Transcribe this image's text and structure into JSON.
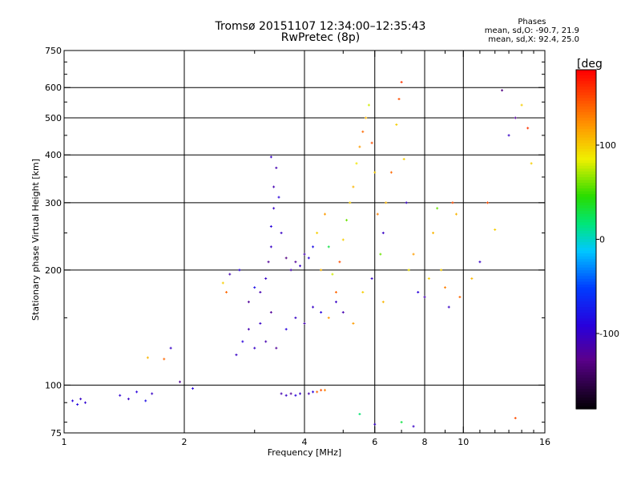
{
  "header": {
    "title": "Tromsø 20151107 12:34:00–12:35:43",
    "subtitle": "RwPretec (8p)"
  },
  "stats": {
    "heading": "Phases",
    "line_o": "mean, sd,O: -90.7, 21.9",
    "line_x": "mean, sd,X:  92.4, 25.0"
  },
  "chart_data": {
    "type": "scatter",
    "xlabel": "Frequency [MHz]",
    "ylabel": "Stationary phase Virtual Height [km]",
    "x_scale": "log",
    "y_scale": "log",
    "xlim": [
      1,
      16
    ],
    "ylim": [
      75,
      750
    ],
    "x_ticks": [
      1,
      2,
      4,
      6,
      8,
      10,
      16
    ],
    "x_tick_labels": [
      "1",
      "2",
      "4",
      "6",
      "8",
      "10",
      "16"
    ],
    "x_gridlines": [
      2,
      4,
      6,
      8,
      10
    ],
    "y_ticks": [
      75,
      100,
      200,
      300,
      400,
      500,
      600,
      750
    ],
    "y_tick_labels": [
      "75",
      "100",
      "200",
      "300",
      "400",
      "500",
      "600",
      "750"
    ],
    "y_gridlines": [
      100,
      200,
      300,
      400,
      500,
      600
    ],
    "grid": true,
    "colorbar": {
      "label": "[deg",
      "range": [
        -180,
        180
      ],
      "ticks": [
        100,
        0,
        -100
      ],
      "tick_labels": [
        "100",
        "0",
        "-100"
      ],
      "colormap": "rainbow",
      "placement": "right"
    },
    "series": [
      {
        "points": [
          [
            1.05,
            91,
            -90
          ],
          [
            1.08,
            89,
            -85
          ],
          [
            1.1,
            92,
            -100
          ],
          [
            1.13,
            90,
            -95
          ],
          [
            1.38,
            94,
            -95
          ],
          [
            1.45,
            92,
            -100
          ],
          [
            1.52,
            96,
            -90
          ],
          [
            1.6,
            91,
            -80
          ],
          [
            1.66,
            95,
            -100
          ],
          [
            1.62,
            118,
            110
          ],
          [
            1.78,
            117,
            140
          ],
          [
            1.85,
            125,
            -100
          ],
          [
            1.95,
            102,
            -120
          ],
          [
            2.1,
            98,
            -90
          ],
          [
            2.5,
            185,
            100
          ],
          [
            2.55,
            175,
            140
          ],
          [
            2.6,
            195,
            -110
          ],
          [
            2.75,
            200,
            -90
          ],
          [
            2.9,
            165,
            -120
          ],
          [
            3.0,
            180,
            -80
          ],
          [
            3.1,
            175,
            -110
          ],
          [
            3.2,
            190,
            -100
          ],
          [
            3.25,
            210,
            -120
          ],
          [
            3.3,
            230,
            -100
          ],
          [
            3.3,
            260,
            -90
          ],
          [
            3.35,
            290,
            -100
          ],
          [
            3.35,
            330,
            -110
          ],
          [
            3.4,
            370,
            -110
          ],
          [
            3.3,
            395,
            -100
          ],
          [
            3.45,
            310,
            -90
          ],
          [
            3.5,
            250,
            -100
          ],
          [
            3.6,
            215,
            -130
          ],
          [
            3.7,
            200,
            -110
          ],
          [
            3.8,
            210,
            -120
          ],
          [
            3.9,
            205,
            -100
          ],
          [
            4.0,
            220,
            -110
          ],
          [
            4.1,
            215,
            -90
          ],
          [
            4.2,
            230,
            -80
          ],
          [
            4.3,
            250,
            100
          ],
          [
            4.4,
            200,
            110
          ],
          [
            4.5,
            280,
            120
          ],
          [
            4.6,
            230,
            30
          ],
          [
            4.7,
            195,
            80
          ],
          [
            4.8,
            175,
            140
          ],
          [
            4.9,
            210,
            150
          ],
          [
            5.0,
            240,
            100
          ],
          [
            5.1,
            270,
            60
          ],
          [
            5.2,
            300,
            100
          ],
          [
            5.3,
            330,
            110
          ],
          [
            5.4,
            380,
            90
          ],
          [
            5.5,
            420,
            120
          ],
          [
            5.6,
            460,
            140
          ],
          [
            5.7,
            500,
            110
          ],
          [
            5.8,
            540,
            80
          ],
          [
            5.9,
            430,
            150
          ],
          [
            6.0,
            360,
            100
          ],
          [
            6.1,
            280,
            130
          ],
          [
            6.2,
            220,
            60
          ],
          [
            6.3,
            250,
            -100
          ],
          [
            6.4,
            300,
            110
          ],
          [
            6.6,
            360,
            140
          ],
          [
            6.8,
            480,
            100
          ],
          [
            6.9,
            560,
            150
          ],
          [
            7.0,
            620,
            160
          ],
          [
            7.1,
            390,
            100
          ],
          [
            7.2,
            300,
            -100
          ],
          [
            7.3,
            200,
            90
          ],
          [
            7.5,
            220,
            120
          ],
          [
            7.7,
            175,
            -90
          ],
          [
            8.0,
            170,
            -110
          ],
          [
            8.2,
            190,
            100
          ],
          [
            8.4,
            250,
            110
          ],
          [
            8.6,
            290,
            60
          ],
          [
            8.8,
            200,
            100
          ],
          [
            9.0,
            180,
            130
          ],
          [
            9.2,
            160,
            -100
          ],
          [
            9.4,
            300,
            150
          ],
          [
            9.6,
            280,
            110
          ],
          [
            9.8,
            170,
            140
          ],
          [
            10.5,
            190,
            110
          ],
          [
            11.0,
            210,
            -100
          ],
          [
            11.5,
            300,
            150
          ],
          [
            12.0,
            255,
            100
          ],
          [
            12.5,
            590,
            -130
          ],
          [
            13.0,
            450,
            -100
          ],
          [
            13.5,
            500,
            -120
          ],
          [
            14.0,
            540,
            100
          ],
          [
            14.5,
            470,
            160
          ],
          [
            14.8,
            380,
            100
          ],
          [
            3.5,
            95,
            -110
          ],
          [
            3.6,
            94,
            -100
          ],
          [
            3.7,
            95,
            -120
          ],
          [
            3.8,
            94,
            -90
          ],
          [
            3.9,
            95,
            -100
          ],
          [
            4.1,
            95,
            -110
          ],
          [
            4.2,
            96,
            -90
          ],
          [
            4.3,
            96,
            140
          ],
          [
            4.4,
            97,
            150
          ],
          [
            4.5,
            97,
            130
          ],
          [
            3.0,
            125,
            -100
          ],
          [
            3.2,
            130,
            -110
          ],
          [
            3.4,
            125,
            -120
          ],
          [
            3.6,
            140,
            -90
          ],
          [
            3.8,
            150,
            -100
          ],
          [
            4.0,
            145,
            -110
          ],
          [
            4.2,
            160,
            -100
          ],
          [
            4.4,
            155,
            -90
          ],
          [
            4.6,
            150,
            120
          ],
          [
            4.8,
            165,
            -100
          ],
          [
            5.0,
            155,
            -110
          ],
          [
            5.3,
            145,
            120
          ],
          [
            5.6,
            175,
            100
          ],
          [
            5.9,
            190,
            -100
          ],
          [
            6.3,
            165,
            110
          ],
          [
            2.7,
            120,
            -100
          ],
          [
            2.8,
            130,
            -90
          ],
          [
            2.9,
            140,
            -110
          ],
          [
            3.1,
            145,
            -100
          ],
          [
            3.3,
            155,
            -120
          ],
          [
            7.0,
            80,
            30
          ],
          [
            7.5,
            78,
            -100
          ],
          [
            5.5,
            84,
            20
          ],
          [
            6.0,
            79,
            -100
          ],
          [
            13.5,
            82,
            150
          ]
        ]
      }
    ]
  }
}
